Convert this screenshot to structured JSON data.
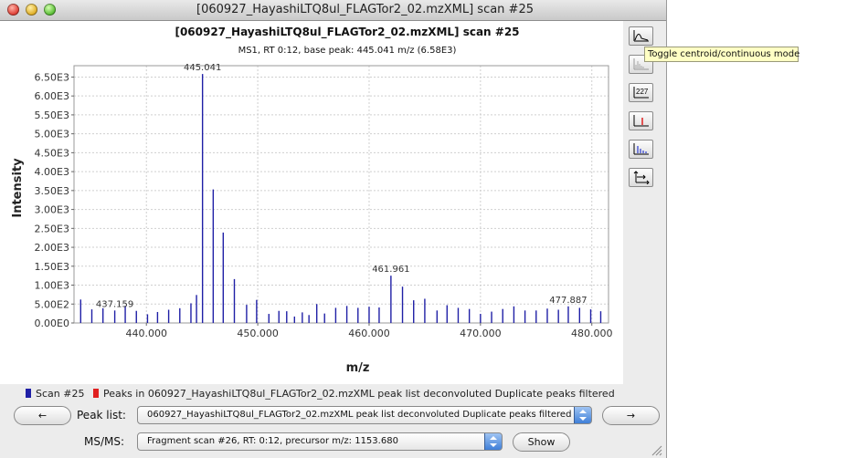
{
  "window": {
    "title": "[060927_HayashiLTQ8ul_FLAGTor2_02.mzXML] scan #25"
  },
  "chart_data": {
    "type": "bar",
    "title": "[060927_HayashiLTQ8ul_FLAGTor2_02.mzXML] scan #25",
    "subtitle": "MS1, RT 0:12, base peak: 445.041 m/z (6.58E3)",
    "xlabel": "m/z",
    "ylabel": "Intensity",
    "xlim": [
      433.5,
      481.5
    ],
    "ylim": [
      0,
      6800
    ],
    "xticks": [
      440,
      450,
      460,
      470,
      480
    ],
    "xtick_labels": [
      "440.000",
      "450.000",
      "460.000",
      "470.000",
      "480.000"
    ],
    "yticks": [
      0,
      500,
      1000,
      1500,
      2000,
      2500,
      3000,
      3500,
      4000,
      4500,
      5000,
      5500,
      6000,
      6500
    ],
    "ytick_labels": [
      "0.00E0",
      "5.00E2",
      "1.00E3",
      "1.50E3",
      "2.00E3",
      "2.50E3",
      "3.00E3",
      "3.50E3",
      "4.00E3",
      "4.50E3",
      "5.00E3",
      "5.50E3",
      "6.00E3",
      "6.50E3"
    ],
    "grid": true,
    "legend_position": "bottom",
    "series": [
      {
        "name": "Scan #25",
        "color": "#1f1fa6",
        "x": [
          434.1,
          435.1,
          436.1,
          437.159,
          438.1,
          439.1,
          440.1,
          441.0,
          442.0,
          443.0,
          444.0,
          444.5,
          445.041,
          446.0,
          446.9,
          447.9,
          449.0,
          449.9,
          451.0,
          451.9,
          452.6,
          453.3,
          454.0,
          454.6,
          455.3,
          456.0,
          457.0,
          458.0,
          459.0,
          460.0,
          460.9,
          461.961,
          463.0,
          464.0,
          465.0,
          466.1,
          467.0,
          468.0,
          469.0,
          470.0,
          471.0,
          472.0,
          473.0,
          474.0,
          475.0,
          476.0,
          477.0,
          477.887,
          478.9,
          479.9,
          480.8
        ],
        "values": [
          620,
          360,
          390,
          330,
          450,
          320,
          230,
          290,
          350,
          390,
          520,
          740,
          6580,
          3530,
          2390,
          1160,
          480,
          610,
          240,
          320,
          310,
          170,
          280,
          210,
          500,
          250,
          400,
          450,
          400,
          430,
          410,
          1250,
          960,
          600,
          640,
          330,
          470,
          400,
          370,
          240,
          300,
          370,
          440,
          330,
          330,
          380,
          350,
          440,
          400,
          360,
          310
        ]
      }
    ],
    "annotations": [
      {
        "x": 445.041,
        "y": 6580,
        "text": "445.041"
      },
      {
        "x": 437.159,
        "y": 330,
        "text": "437.159"
      },
      {
        "x": 461.961,
        "y": 1250,
        "text": "461.961"
      },
      {
        "x": 477.887,
        "y": 440,
        "text": "477.887"
      }
    ]
  },
  "legend": {
    "items": [
      {
        "label": "Scan #25",
        "color": "#1f1fa6"
      },
      {
        "label": "Peaks in 060927_HayashiLTQ8ul_FLAGTor2_02.mzXML peak list deconvoluted Duplicate peaks filtered",
        "color": "#e02020"
      }
    ]
  },
  "toolbar": {
    "tooltip": "Toggle centroid/continuous mode",
    "buttons": [
      {
        "name": "toggle-centroid-button",
        "icon": "centroid-continuous-icon"
      },
      {
        "name": "toggle-dataset-button",
        "icon": "dataset-icon"
      },
      {
        "name": "toggle-annotation-button",
        "icon": "annotation-icon"
      },
      {
        "name": "toggle-picked-peaks-button",
        "icon": "picked-peaks-icon"
      },
      {
        "name": "toggle-isotope-button",
        "icon": "isotope-peaks-icon"
      },
      {
        "name": "set-axes-button",
        "icon": "axes-icon"
      }
    ],
    "annotation_icon_text": "227"
  },
  "controls": {
    "prev_label": "←",
    "next_label": "→",
    "peak_list_label": "Peak list:",
    "peak_list_value": "060927_HayashiLTQ8ul_FLAGTor2_02.mzXML peak list deconvoluted Duplicate peaks filtered",
    "msms_label": "MS/MS:",
    "msms_value": "Fragment scan #26, RT: 0:12, precursor m/z: 1153.680",
    "show_label": "Show"
  }
}
